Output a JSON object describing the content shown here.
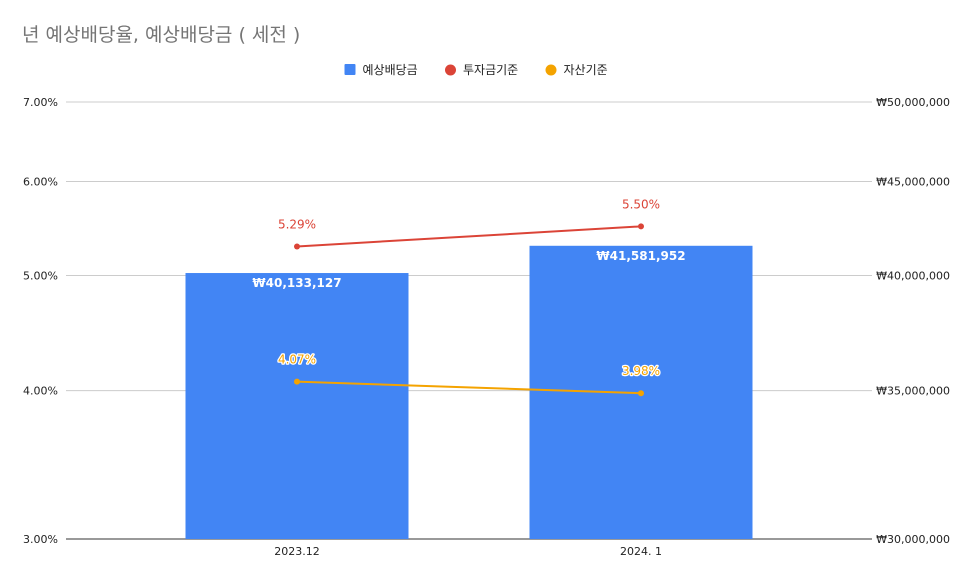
{
  "chart_data": {
    "type": "combo",
    "title": "년 예상배당율, 예상배당금 ( 세전 )",
    "categories": [
      "2023.12",
      "2024. 1"
    ],
    "legend_position": "top",
    "grid": true,
    "left_axis": {
      "scale": "log",
      "range": [
        0.03,
        0.07
      ],
      "ticks": [
        0.03,
        0.04,
        0.05,
        0.06,
        0.07
      ],
      "tick_labels": [
        "3.00%",
        "4.00%",
        "5.00%",
        "6.00%",
        "7.00%"
      ]
    },
    "right_axis": {
      "scale": "linear",
      "range": [
        30000000,
        50000000
      ],
      "ticks": [
        30000000,
        35000000,
        40000000,
        45000000,
        50000000
      ],
      "tick_labels": [
        "₩30,000,000",
        "₩35,000,000",
        "₩40,000,000",
        "₩45,000,000",
        "₩50,000,000"
      ]
    },
    "series": [
      {
        "name": "예상배당금",
        "kind": "bar",
        "axis": "right",
        "color": "#4285f4",
        "values": [
          40133127,
          41581952
        ],
        "labels": [
          "₩40,133,127",
          "₩41,581,952"
        ]
      },
      {
        "name": "투자금기준",
        "kind": "line",
        "axis": "left",
        "color": "#db4437",
        "values": [
          0.0529,
          0.055
        ],
        "labels": [
          "5.29%",
          "5.50%"
        ]
      },
      {
        "name": "자산기준",
        "kind": "line",
        "axis": "left",
        "color": "#f4a300",
        "values": [
          0.0407,
          0.0398
        ],
        "labels": [
          "4.07%",
          "3.98%"
        ]
      }
    ]
  }
}
